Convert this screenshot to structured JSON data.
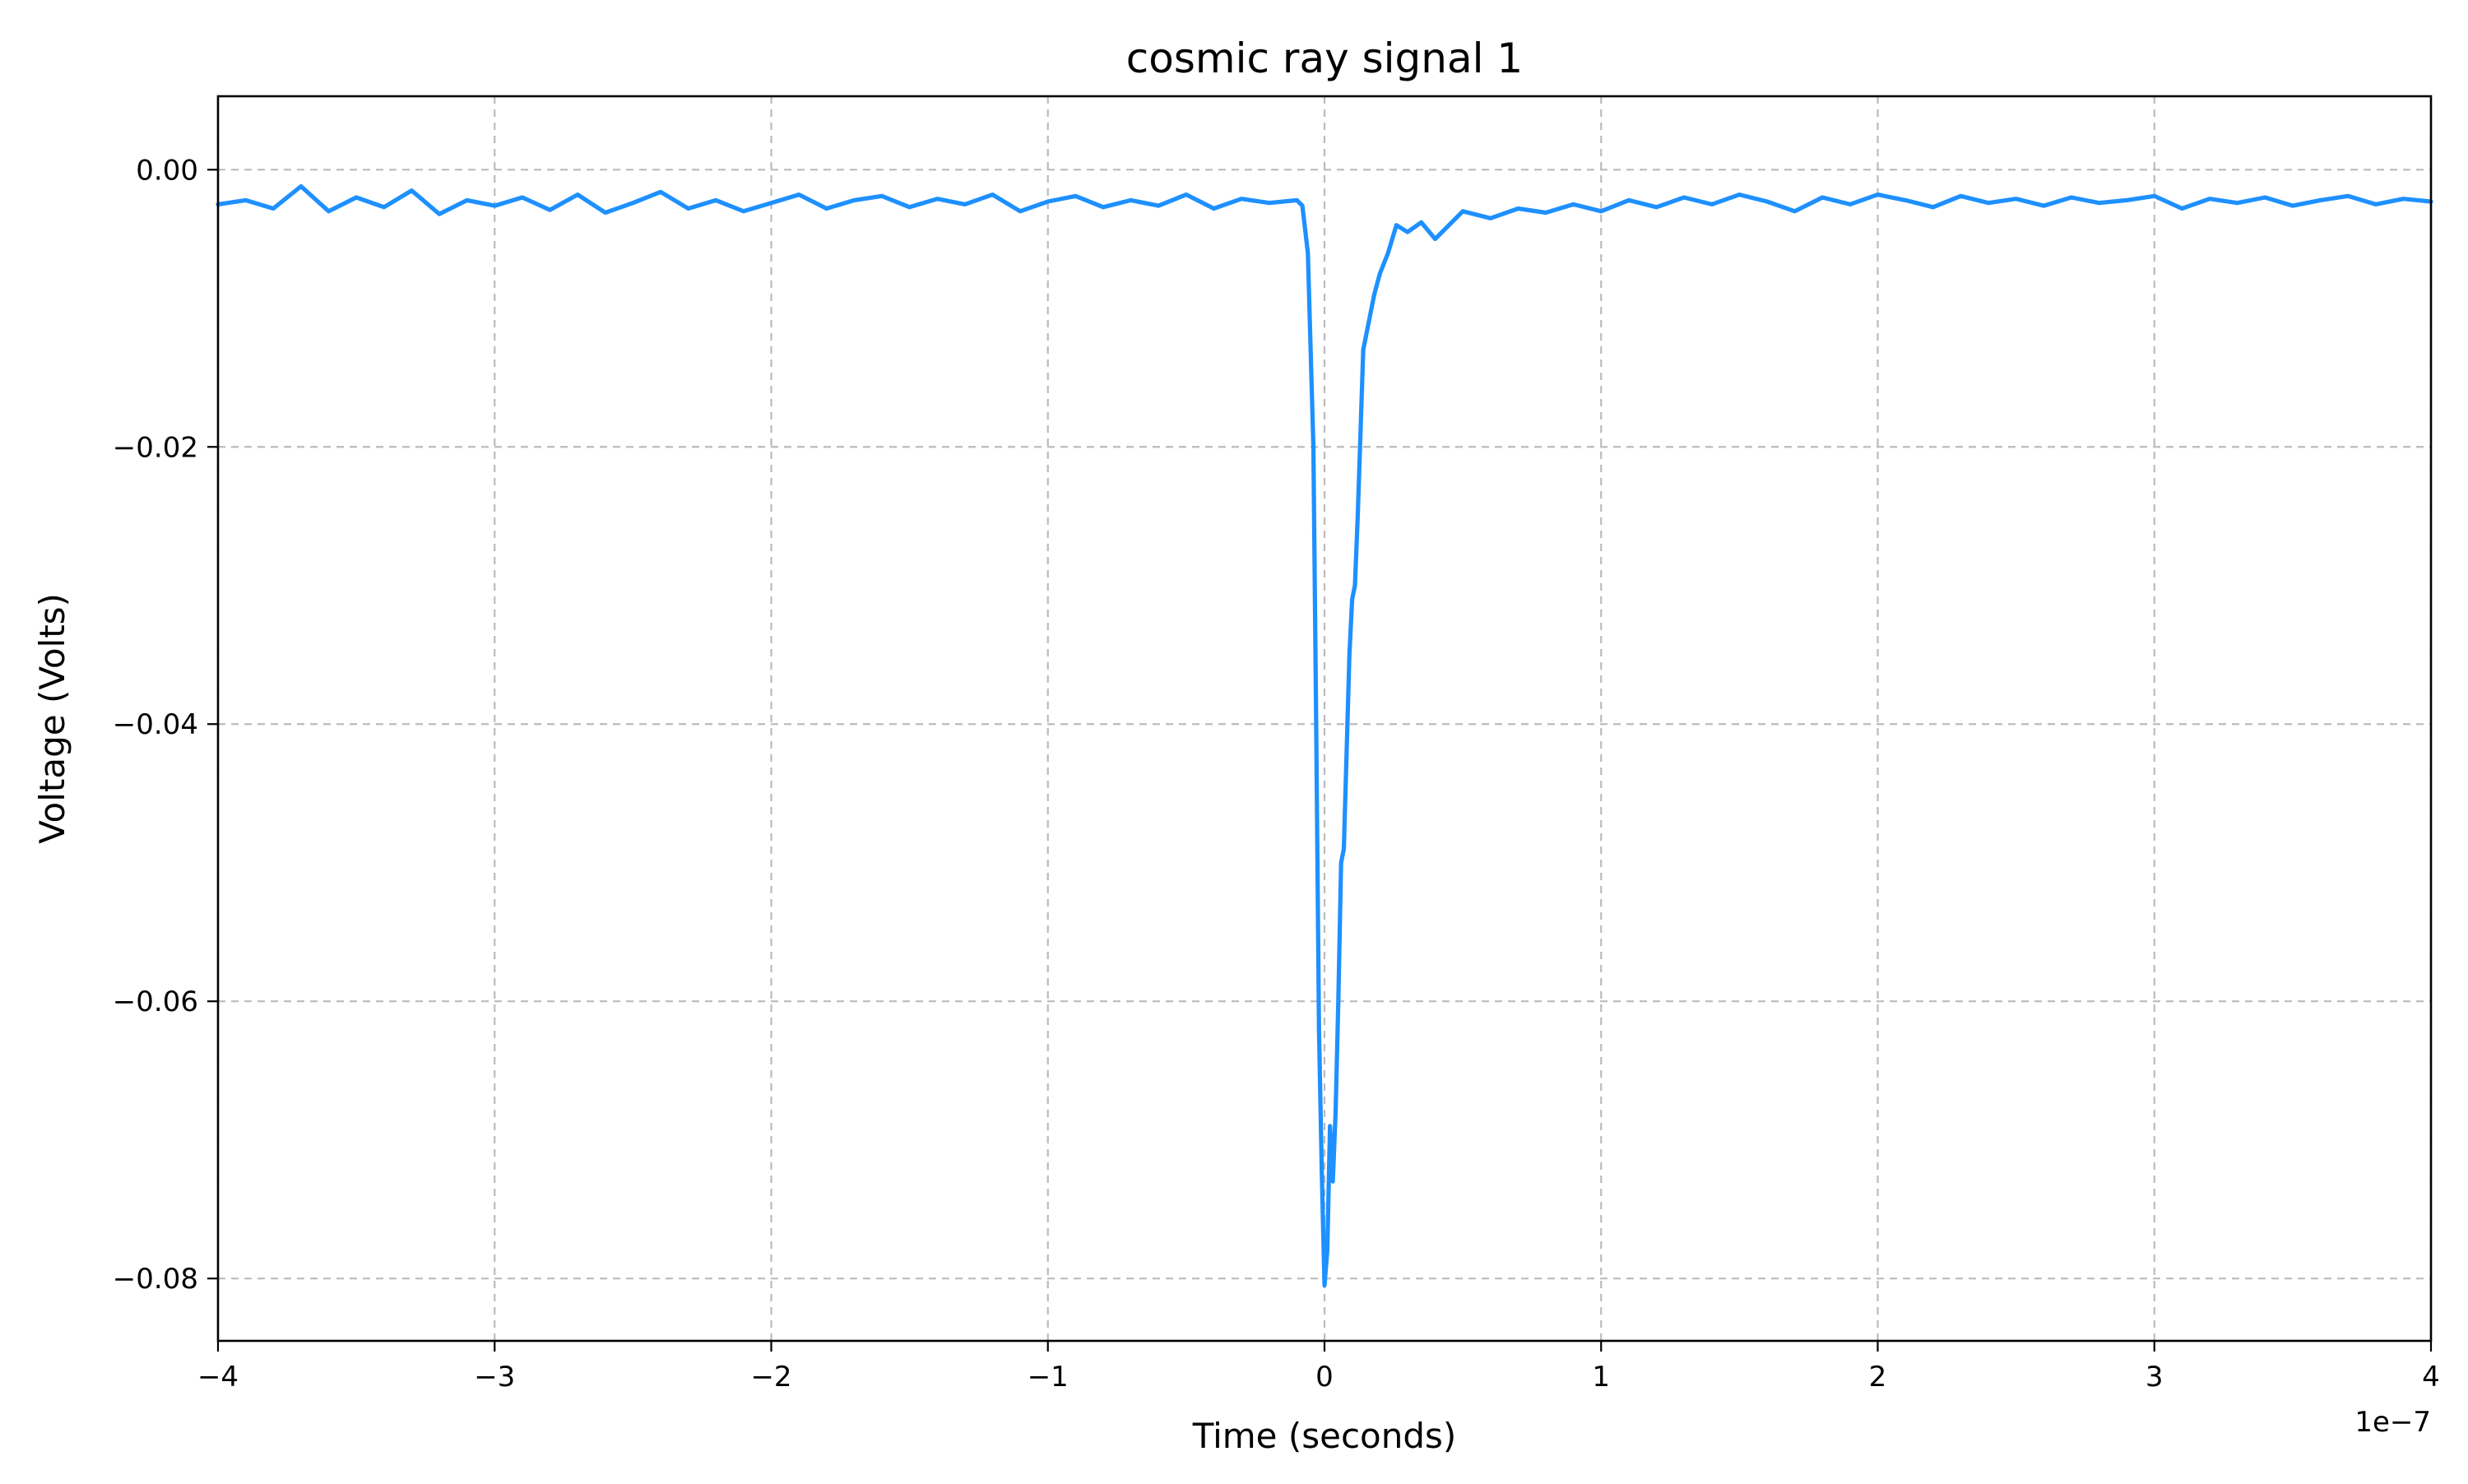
{
  "chart_data": {
    "type": "line",
    "title": "cosmic ray signal 1",
    "xlabel": "Time (seconds)",
    "ylabel": "Voltage (Volts)",
    "x_offset_label": "1e−7",
    "xlim": [
      -4e-07,
      4e-07
    ],
    "ylim": [
      -0.0845,
      0.0053
    ],
    "grid": true,
    "legend": "none",
    "x_ticks": [
      {
        "value": -4e-07,
        "label": "−4"
      },
      {
        "value": -3e-07,
        "label": "−3"
      },
      {
        "value": -2e-07,
        "label": "−2"
      },
      {
        "value": -1e-07,
        "label": "−1"
      },
      {
        "value": 0,
        "label": "0"
      },
      {
        "value": 1e-07,
        "label": "1"
      },
      {
        "value": 2e-07,
        "label": "2"
      },
      {
        "value": 3e-07,
        "label": "3"
      },
      {
        "value": 4e-07,
        "label": "4"
      }
    ],
    "y_ticks": [
      {
        "value": 0.0,
        "label": "0.00"
      },
      {
        "value": -0.02,
        "label": "−0.02"
      },
      {
        "value": -0.04,
        "label": "−0.04"
      },
      {
        "value": -0.06,
        "label": "−0.06"
      },
      {
        "value": -0.08,
        "label": "−0.08"
      }
    ],
    "series": [
      {
        "color": "#1e90ff",
        "x": [
          -4e-07,
          -3.9e-07,
          -3.8e-07,
          -3.7e-07,
          -3.6e-07,
          -3.5e-07,
          -3.4e-07,
          -3.3e-07,
          -3.2e-07,
          -3.1e-07,
          -3e-07,
          -2.9e-07,
          -2.8e-07,
          -2.7e-07,
          -2.6e-07,
          -2.5e-07,
          -2.4e-07,
          -2.3e-07,
          -2.2e-07,
          -2.1e-07,
          -2e-07,
          -1.9e-07,
          -1.8e-07,
          -1.7e-07,
          -1.6e-07,
          -1.5e-07,
          -1.4e-07,
          -1.3e-07,
          -1.2e-07,
          -1.1e-07,
          -1e-07,
          -9e-08,
          -8e-08,
          -7e-08,
          -6e-08,
          -5e-08,
          -4e-08,
          -3e-08,
          -2e-08,
          -1e-08,
          -8e-09,
          -6e-09,
          -4e-09,
          -3e-09,
          -2e-09,
          -1e-09,
          0,
          1e-09,
          2e-09,
          3e-09,
          4e-09,
          5e-09,
          6e-09,
          7e-09,
          8e-09,
          9e-09,
          1e-08,
          1.1e-08,
          1.2e-08,
          1.4e-08,
          1.6e-08,
          1.8e-08,
          2e-08,
          2.3e-08,
          2.6e-08,
          3e-08,
          3.5e-08,
          4e-08,
          5e-08,
          6e-08,
          7e-08,
          8e-08,
          9e-08,
          1e-07,
          1.1e-07,
          1.2e-07,
          1.3e-07,
          1.4e-07,
          1.5e-07,
          1.6e-07,
          1.7e-07,
          1.8e-07,
          1.9e-07,
          2e-07,
          2.1e-07,
          2.2e-07,
          2.3e-07,
          2.4e-07,
          2.5e-07,
          2.6e-07,
          2.7e-07,
          2.8e-07,
          2.9e-07,
          3e-07,
          3.1e-07,
          3.2e-07,
          3.3e-07,
          3.4e-07,
          3.5e-07,
          3.6e-07,
          3.7e-07,
          3.8e-07,
          3.9e-07,
          4e-07
        ],
        "y": [
          -0.0025,
          -0.0022,
          -0.0028,
          -0.0012,
          -0.003,
          -0.002,
          -0.0027,
          -0.0015,
          -0.0032,
          -0.0022,
          -0.0026,
          -0.002,
          -0.0029,
          -0.0018,
          -0.0031,
          -0.0024,
          -0.0016,
          -0.0028,
          -0.0022,
          -0.003,
          -0.0024,
          -0.0018,
          -0.0028,
          -0.0022,
          -0.0019,
          -0.0027,
          -0.0021,
          -0.0025,
          -0.0018,
          -0.003,
          -0.0023,
          -0.0019,
          -0.0027,
          -0.0022,
          -0.0026,
          -0.0018,
          -0.0028,
          -0.0021,
          -0.0024,
          -0.0022,
          -0.0026,
          -0.006,
          -0.02,
          -0.04,
          -0.062,
          -0.072,
          -0.0805,
          -0.078,
          -0.069,
          -0.073,
          -0.068,
          -0.06,
          -0.05,
          -0.049,
          -0.042,
          -0.035,
          -0.031,
          -0.03,
          -0.025,
          -0.013,
          -0.011,
          -0.009,
          -0.0075,
          -0.006,
          -0.004,
          -0.0045,
          -0.0038,
          -0.005,
          -0.003,
          -0.0035,
          -0.0028,
          -0.0031,
          -0.0025,
          -0.003,
          -0.0022,
          -0.0027,
          -0.002,
          -0.0025,
          -0.0018,
          -0.0023,
          -0.003,
          -0.002,
          -0.0025,
          -0.0018,
          -0.0022,
          -0.0027,
          -0.0019,
          -0.0024,
          -0.0021,
          -0.0026,
          -0.002,
          -0.0024,
          -0.0022,
          -0.0019,
          -0.0028,
          -0.0021,
          -0.0024,
          -0.002,
          -0.0026,
          -0.0022,
          -0.0019,
          -0.0025,
          -0.0021,
          -0.0023
        ]
      }
    ]
  }
}
